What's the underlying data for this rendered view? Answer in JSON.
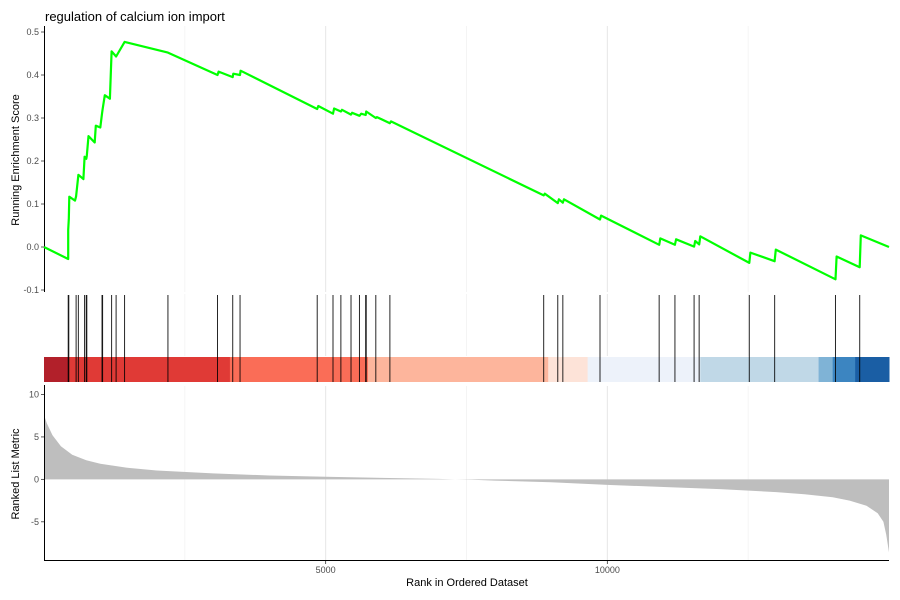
{
  "chart_data": {
    "type": "line",
    "title": "regulation of calcium ion import",
    "xlabel": "Rank in Ordered Dataset",
    "x_ticks": [
      5000,
      10000
    ],
    "xlim": [
      0,
      15000
    ],
    "es_panel": {
      "ylabel": "Running Enrichment Score",
      "ylim": [
        -0.1,
        0.5
      ],
      "y_ticks": [
        -0.1,
        0.0,
        0.1,
        0.2,
        0.3,
        0.4,
        0.5
      ],
      "line_color": "#00ff00",
      "series": [
        {
          "x": [
            0,
            430,
            430,
            440,
            450,
            550,
            570,
            610,
            700,
            720,
            750,
            760,
            790,
            900,
            920,
            1000,
            1030,
            1040,
            1080,
            1170,
            1200,
            1280,
            1430,
            2200,
            3080,
            3100,
            3350,
            3360,
            3480,
            3490,
            4850,
            4870,
            5130,
            5150,
            5270,
            5290,
            5450,
            5470,
            5600,
            5630,
            5710,
            5720,
            5890,
            5910,
            6140,
            6160,
            8870,
            8890,
            9120,
            9140,
            9210,
            9230,
            9870,
            9890,
            10920,
            10940,
            11200,
            11220,
            11540,
            11560,
            11630,
            11650,
            12520,
            12540,
            12970,
            12990,
            14050,
            14070,
            14480,
            14500,
            15000
          ],
          "y": [
            0.0,
            -0.028,
            0.04,
            0.065,
            0.117,
            0.108,
            0.118,
            0.168,
            0.158,
            0.21,
            0.205,
            0.212,
            0.258,
            0.243,
            0.282,
            0.278,
            0.31,
            0.32,
            0.353,
            0.345,
            0.455,
            0.443,
            0.477,
            0.452,
            0.4,
            0.408,
            0.395,
            0.403,
            0.4,
            0.41,
            0.321,
            0.328,
            0.31,
            0.322,
            0.315,
            0.319,
            0.308,
            0.312,
            0.305,
            0.31,
            0.307,
            0.315,
            0.3,
            0.302,
            0.288,
            0.292,
            0.12,
            0.124,
            0.102,
            0.111,
            0.103,
            0.111,
            0.064,
            0.073,
            0.005,
            0.02,
            0.005,
            0.018,
            0.001,
            0.014,
            0.006,
            0.025,
            -0.037,
            -0.013,
            -0.033,
            -0.006,
            -0.075,
            -0.022,
            -0.047,
            0.027,
            0.0
          ]
        }
      ]
    },
    "hits": [
      430,
      440,
      570,
      610,
      720,
      750,
      760,
      1030,
      1040,
      1200,
      1280,
      1430,
      2200,
      3080,
      3350,
      3480,
      4850,
      5130,
      5270,
      5450,
      5600,
      5710,
      5720,
      5890,
      6140,
      8870,
      9120,
      9210,
      9870,
      10920,
      11200,
      11540,
      11630,
      12520,
      12970,
      14050,
      14480
    ],
    "color_bar": [
      {
        "start": 0,
        "end": 430,
        "color": "#b2202a"
      },
      {
        "start": 430,
        "end": 3300,
        "color": "#e03a36"
      },
      {
        "start": 3300,
        "end": 5750,
        "color": "#fa6d57"
      },
      {
        "start": 5750,
        "end": 8950,
        "color": "#fdb59c"
      },
      {
        "start": 8950,
        "end": 9650,
        "color": "#fde3d8"
      },
      {
        "start": 9650,
        "end": 11650,
        "color": "#edf2fa"
      },
      {
        "start": 11650,
        "end": 13750,
        "color": "#c0d8e7"
      },
      {
        "start": 13750,
        "end": 14000,
        "color": "#7fb3d6"
      },
      {
        "start": 14000,
        "end": 14400,
        "color": "#3c85c1"
      },
      {
        "start": 14400,
        "end": 15000,
        "color": "#1a5ea4"
      }
    ],
    "metric_panel": {
      "ylabel": "Ranked List Metric",
      "ylim": [
        -9.5,
        11
      ],
      "y_ticks": [
        10,
        5,
        0,
        -5
      ],
      "fill_color": "#bebebe",
      "curve": {
        "x": [
          0,
          50,
          150,
          300,
          500,
          750,
          1000,
          1500,
          2000,
          3000,
          4000,
          5000,
          6000,
          7000,
          7300,
          7600,
          8000,
          9000,
          10000,
          11000,
          12000,
          13000,
          13500,
          14000,
          14300,
          14600,
          14800,
          14900,
          14950,
          15000
        ],
        "y": [
          7.6,
          6.6,
          5.2,
          3.9,
          2.9,
          2.25,
          1.85,
          1.35,
          1.05,
          0.7,
          0.45,
          0.3,
          0.17,
          0.05,
          0.0,
          -0.05,
          -0.15,
          -0.35,
          -0.65,
          -0.9,
          -1.15,
          -1.5,
          -1.75,
          -2.1,
          -2.5,
          -3.1,
          -4.0,
          -5.0,
          -6.5,
          -8.6
        ]
      }
    }
  }
}
